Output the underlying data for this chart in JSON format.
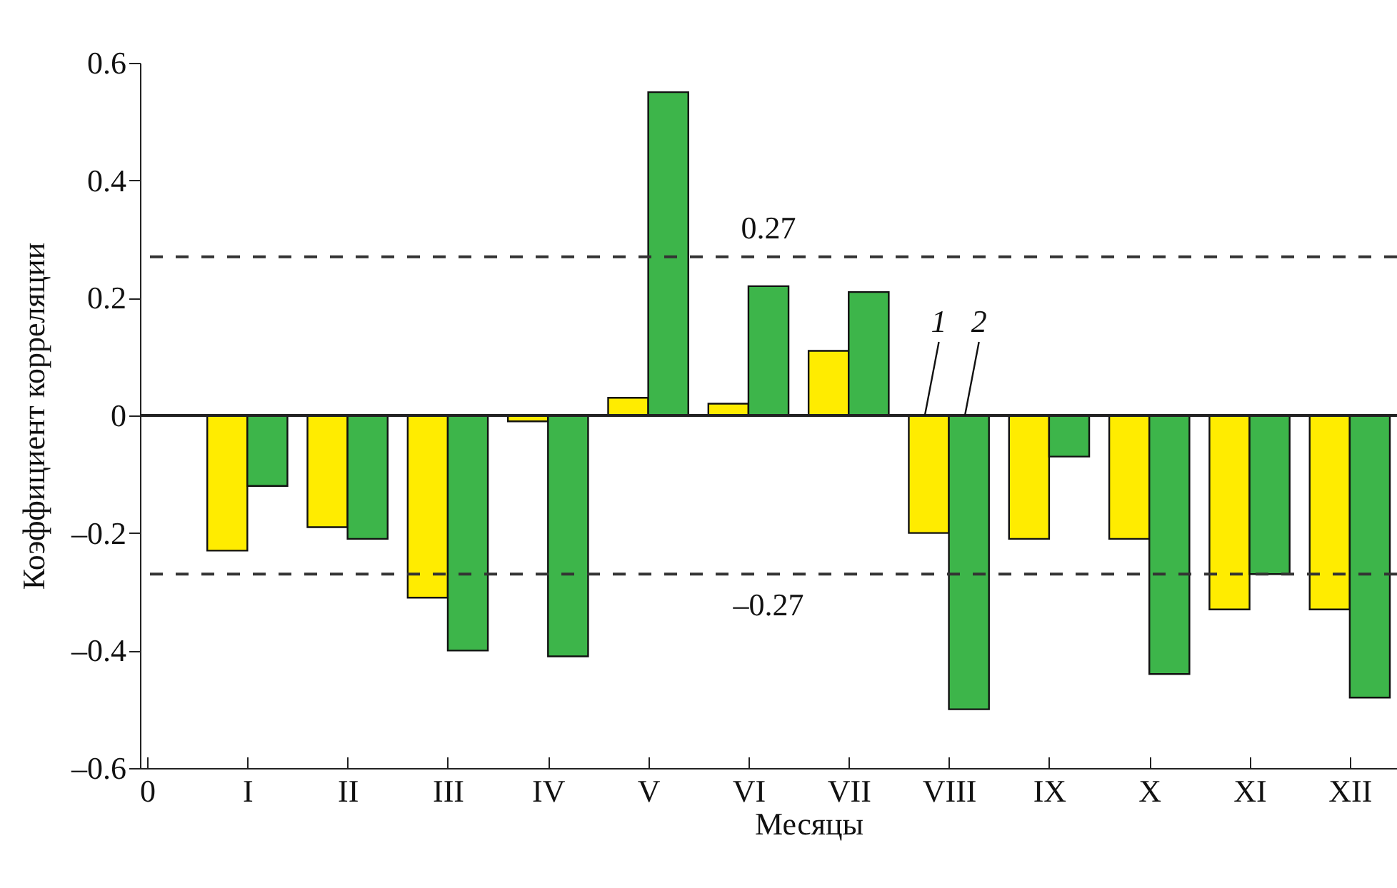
{
  "chart_data": {
    "type": "bar",
    "xlabel": "Месяцы",
    "ylabel": "Коэффициент корреляции",
    "categories": [
      "0",
      "I",
      "II",
      "III",
      "IV",
      "V",
      "VI",
      "VII",
      "VIII",
      "IX",
      "X",
      "XI",
      "XII"
    ],
    "series": [
      {
        "name": "1",
        "color": "#ffec00",
        "values": [
          null,
          -0.23,
          -0.19,
          -0.31,
          -0.01,
          0.03,
          0.02,
          0.11,
          -0.2,
          -0.21,
          -0.21,
          -0.33,
          -0.33
        ]
      },
      {
        "name": "2",
        "color": "#3db54a",
        "values": [
          null,
          -0.12,
          -0.21,
          -0.4,
          -0.41,
          0.55,
          0.22,
          0.21,
          -0.5,
          -0.07,
          -0.44,
          -0.27,
          -0.48
        ]
      }
    ],
    "ylim": [
      -0.6,
      0.6
    ],
    "yticks": [
      {
        "value": -0.6,
        "label": "–0.6"
      },
      {
        "value": -0.4,
        "label": "–0.4"
      },
      {
        "value": -0.2,
        "label": "–0.2"
      },
      0,
      0.2,
      0.4,
      0.6
    ],
    "ref_lines": [
      {
        "axis": "y",
        "value": 0.27,
        "label": "0.27",
        "line_style": "dashed",
        "color": "#333333"
      },
      {
        "axis": "y",
        "value": -0.27,
        "label": "–0.27",
        "line_style": "dashed",
        "color": "#333333"
      },
      {
        "axis": "y",
        "value": 0,
        "line_style": "solid",
        "color": "#222222"
      }
    ]
  }
}
